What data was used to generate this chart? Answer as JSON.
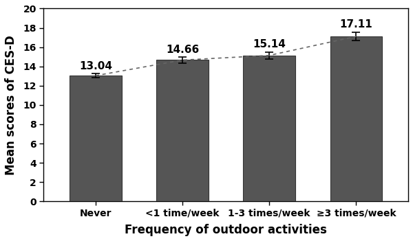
{
  "categories": [
    "Never",
    "<1 time/week",
    "1-3 times/week",
    "≥3 times/week"
  ],
  "values": [
    13.04,
    14.66,
    15.14,
    17.11
  ],
  "errors": [
    0.2,
    0.3,
    0.35,
    0.45
  ],
  "bar_color": "#555555",
  "bar_edgecolor": "#333333",
  "bar_width": 0.6,
  "xlabel": "Frequency of outdoor activities",
  "ylabel": "Mean scores of CES-D",
  "ylim": [
    0,
    20
  ],
  "yticks": [
    0,
    2,
    4,
    6,
    8,
    10,
    12,
    14,
    16,
    18,
    20
  ],
  "xlabel_fontsize": 12,
  "ylabel_fontsize": 12,
  "tick_fontsize": 10,
  "value_fontsize": 11,
  "background_color": "#ffffff",
  "dotted_line_color": "#666666",
  "box_spines": true
}
